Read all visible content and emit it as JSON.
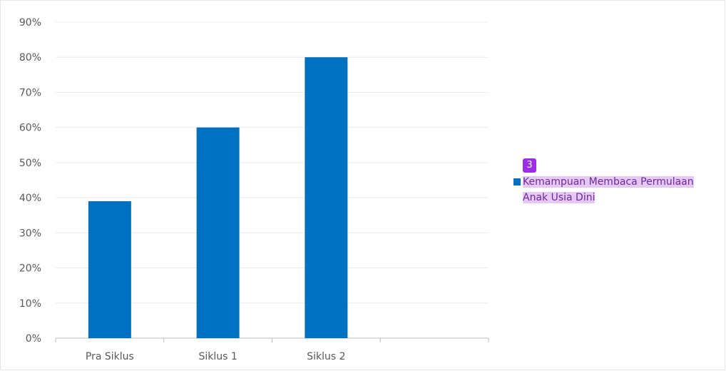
{
  "chart_data": {
    "type": "bar",
    "categories": [
      "Pra Siklus",
      "Siklus 1",
      "Siklus 2",
      ""
    ],
    "series": [
      {
        "name": "Kemampuan Membaca Permulaan Anak Usia Dini",
        "values": [
          0.39,
          0.6,
          0.8,
          null
        ],
        "color": "#0070c0"
      }
    ],
    "yticks": [
      "0%",
      "10%",
      "20%",
      "30%",
      "40%",
      "50%",
      "60%",
      "70%",
      "80%",
      "90%"
    ],
    "ylim": [
      0,
      0.9
    ],
    "grid": true,
    "legend_position": "right"
  },
  "legend": {
    "badge": "3",
    "line1": "Kemampuan Membaca Permulaan",
    "line2": "Anak Usia Dini",
    "badge_color": "#9b2ee6"
  }
}
